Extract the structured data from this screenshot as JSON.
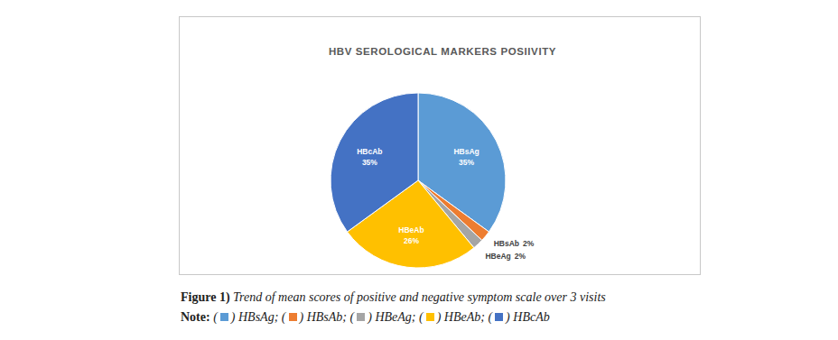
{
  "chart_data": {
    "type": "pie",
    "title": "HBV SEROLOGICAL MARKERS POSIIVITY",
    "categories": [
      "HBsAg",
      "HBsAb",
      "HBeAg",
      "HBeAb",
      "HBcAb"
    ],
    "values": [
      35,
      2,
      2,
      26,
      35
    ],
    "value_labels": [
      "35%",
      "2%",
      "2%",
      "26%",
      "35%"
    ],
    "colors": [
      "#5b9bd5",
      "#ed7d31",
      "#a5a5a5",
      "#ffc000",
      "#4472c4"
    ],
    "data_labels": true,
    "legend": "bottom"
  },
  "figure": {
    "label": "Figure 1)",
    "caption": "Trend of mean scores of positive and negative symptom scale over 3 visits",
    "note_label": "Note:",
    "legend_open": "(",
    "legend_close": ")",
    "legend_separator": ";"
  }
}
